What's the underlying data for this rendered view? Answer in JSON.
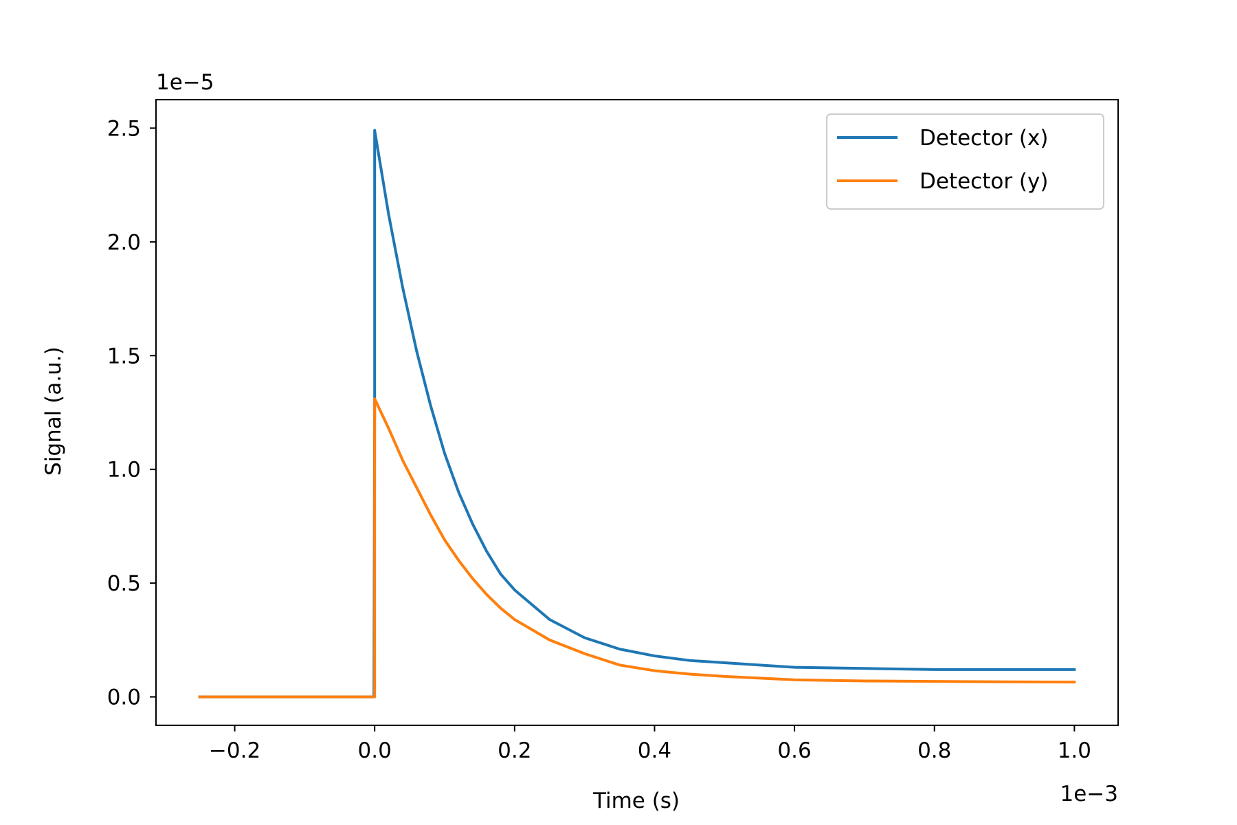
{
  "chart_data": {
    "type": "line",
    "title": "",
    "xlabel": "Time (s)",
    "ylabel": "Signal (a.u.)",
    "x_scale_note": "1e−3",
    "y_scale_note": "1e−5",
    "xlim": [
      -0.3125,
      1.0625
    ],
    "ylim": [
      -0.125,
      2.625
    ],
    "xticks": [
      -0.2,
      0.0,
      0.2,
      0.4,
      0.6,
      0.8,
      1.0
    ],
    "xtick_labels": [
      "−0.2",
      "0.0",
      "0.2",
      "0.4",
      "0.6",
      "0.8",
      "1.0"
    ],
    "yticks": [
      0.0,
      0.5,
      1.0,
      1.5,
      2.0,
      2.5
    ],
    "ytick_labels": [
      "0.0",
      "0.5",
      "1.0",
      "1.5",
      "2.0",
      "2.5"
    ],
    "grid": false,
    "legend_position": "top-right",
    "series": [
      {
        "name": "Detector (x)",
        "color": "#1f77b4",
        "x": [
          -0.25,
          -0.001,
          0.0,
          0.0,
          0.02,
          0.04,
          0.06,
          0.08,
          0.1,
          0.12,
          0.14,
          0.16,
          0.18,
          0.2,
          0.25,
          0.3,
          0.35,
          0.4,
          0.45,
          0.5,
          0.6,
          0.7,
          0.8,
          0.9,
          1.0
        ],
        "y": [
          0.0,
          0.0,
          1.3,
          2.49,
          2.12,
          1.8,
          1.52,
          1.28,
          1.07,
          0.9,
          0.76,
          0.64,
          0.54,
          0.47,
          0.34,
          0.26,
          0.21,
          0.18,
          0.16,
          0.15,
          0.13,
          0.125,
          0.12,
          0.12,
          0.12
        ]
      },
      {
        "name": "Detector (y)",
        "color": "#ff7f0e",
        "x": [
          -0.25,
          -0.001,
          0.0,
          0.0,
          0.02,
          0.04,
          0.06,
          0.08,
          0.1,
          0.12,
          0.14,
          0.16,
          0.18,
          0.2,
          0.25,
          0.3,
          0.35,
          0.4,
          0.45,
          0.5,
          0.6,
          0.7,
          0.8,
          0.9,
          1.0
        ],
        "y": [
          0.0,
          0.0,
          0.0,
          1.31,
          1.18,
          1.04,
          0.92,
          0.8,
          0.69,
          0.6,
          0.52,
          0.45,
          0.39,
          0.34,
          0.25,
          0.19,
          0.14,
          0.115,
          0.1,
          0.09,
          0.075,
          0.07,
          0.068,
          0.066,
          0.065
        ]
      }
    ]
  }
}
